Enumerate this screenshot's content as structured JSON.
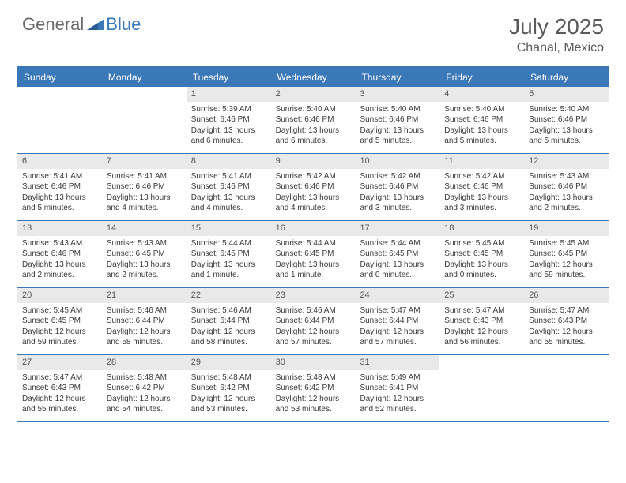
{
  "logo": {
    "general": "General",
    "blue": "Blue"
  },
  "title": "July 2025",
  "location": "Chanal, Mexico",
  "colors": {
    "accent": "#3b78b8",
    "header_bg": "#3b78b8",
    "header_text": "#ffffff",
    "daynum_bg": "#e9e9e9",
    "text": "#3a3a3a",
    "title_text": "#5a5a5a",
    "logo_gray": "#6b6b6b"
  },
  "day_headers": [
    "Sunday",
    "Monday",
    "Tuesday",
    "Wednesday",
    "Thursday",
    "Friday",
    "Saturday"
  ],
  "weeks": [
    [
      {
        "n": "",
        "sr": "",
        "ss": "",
        "dl": ""
      },
      {
        "n": "",
        "sr": "",
        "ss": "",
        "dl": ""
      },
      {
        "n": "1",
        "sr": "Sunrise: 5:39 AM",
        "ss": "Sunset: 6:46 PM",
        "dl": "Daylight: 13 hours and 6 minutes."
      },
      {
        "n": "2",
        "sr": "Sunrise: 5:40 AM",
        "ss": "Sunset: 6:46 PM",
        "dl": "Daylight: 13 hours and 6 minutes."
      },
      {
        "n": "3",
        "sr": "Sunrise: 5:40 AM",
        "ss": "Sunset: 6:46 PM",
        "dl": "Daylight: 13 hours and 5 minutes."
      },
      {
        "n": "4",
        "sr": "Sunrise: 5:40 AM",
        "ss": "Sunset: 6:46 PM",
        "dl": "Daylight: 13 hours and 5 minutes."
      },
      {
        "n": "5",
        "sr": "Sunrise: 5:40 AM",
        "ss": "Sunset: 6:46 PM",
        "dl": "Daylight: 13 hours and 5 minutes."
      }
    ],
    [
      {
        "n": "6",
        "sr": "Sunrise: 5:41 AM",
        "ss": "Sunset: 6:46 PM",
        "dl": "Daylight: 13 hours and 5 minutes."
      },
      {
        "n": "7",
        "sr": "Sunrise: 5:41 AM",
        "ss": "Sunset: 6:46 PM",
        "dl": "Daylight: 13 hours and 4 minutes."
      },
      {
        "n": "8",
        "sr": "Sunrise: 5:41 AM",
        "ss": "Sunset: 6:46 PM",
        "dl": "Daylight: 13 hours and 4 minutes."
      },
      {
        "n": "9",
        "sr": "Sunrise: 5:42 AM",
        "ss": "Sunset: 6:46 PM",
        "dl": "Daylight: 13 hours and 4 minutes."
      },
      {
        "n": "10",
        "sr": "Sunrise: 5:42 AM",
        "ss": "Sunset: 6:46 PM",
        "dl": "Daylight: 13 hours and 3 minutes."
      },
      {
        "n": "11",
        "sr": "Sunrise: 5:42 AM",
        "ss": "Sunset: 6:46 PM",
        "dl": "Daylight: 13 hours and 3 minutes."
      },
      {
        "n": "12",
        "sr": "Sunrise: 5:43 AM",
        "ss": "Sunset: 6:46 PM",
        "dl": "Daylight: 13 hours and 2 minutes."
      }
    ],
    [
      {
        "n": "13",
        "sr": "Sunrise: 5:43 AM",
        "ss": "Sunset: 6:46 PM",
        "dl": "Daylight: 13 hours and 2 minutes."
      },
      {
        "n": "14",
        "sr": "Sunrise: 5:43 AM",
        "ss": "Sunset: 6:45 PM",
        "dl": "Daylight: 13 hours and 2 minutes."
      },
      {
        "n": "15",
        "sr": "Sunrise: 5:44 AM",
        "ss": "Sunset: 6:45 PM",
        "dl": "Daylight: 13 hours and 1 minute."
      },
      {
        "n": "16",
        "sr": "Sunrise: 5:44 AM",
        "ss": "Sunset: 6:45 PM",
        "dl": "Daylight: 13 hours and 1 minute."
      },
      {
        "n": "17",
        "sr": "Sunrise: 5:44 AM",
        "ss": "Sunset: 6:45 PM",
        "dl": "Daylight: 13 hours and 0 minutes."
      },
      {
        "n": "18",
        "sr": "Sunrise: 5:45 AM",
        "ss": "Sunset: 6:45 PM",
        "dl": "Daylight: 13 hours and 0 minutes."
      },
      {
        "n": "19",
        "sr": "Sunrise: 5:45 AM",
        "ss": "Sunset: 6:45 PM",
        "dl": "Daylight: 12 hours and 59 minutes."
      }
    ],
    [
      {
        "n": "20",
        "sr": "Sunrise: 5:45 AM",
        "ss": "Sunset: 6:45 PM",
        "dl": "Daylight: 12 hours and 59 minutes."
      },
      {
        "n": "21",
        "sr": "Sunrise: 5:46 AM",
        "ss": "Sunset: 6:44 PM",
        "dl": "Daylight: 12 hours and 58 minutes."
      },
      {
        "n": "22",
        "sr": "Sunrise: 5:46 AM",
        "ss": "Sunset: 6:44 PM",
        "dl": "Daylight: 12 hours and 58 minutes."
      },
      {
        "n": "23",
        "sr": "Sunrise: 5:46 AM",
        "ss": "Sunset: 6:44 PM",
        "dl": "Daylight: 12 hours and 57 minutes."
      },
      {
        "n": "24",
        "sr": "Sunrise: 5:47 AM",
        "ss": "Sunset: 6:44 PM",
        "dl": "Daylight: 12 hours and 57 minutes."
      },
      {
        "n": "25",
        "sr": "Sunrise: 5:47 AM",
        "ss": "Sunset: 6:43 PM",
        "dl": "Daylight: 12 hours and 56 minutes."
      },
      {
        "n": "26",
        "sr": "Sunrise: 5:47 AM",
        "ss": "Sunset: 6:43 PM",
        "dl": "Daylight: 12 hours and 55 minutes."
      }
    ],
    [
      {
        "n": "27",
        "sr": "Sunrise: 5:47 AM",
        "ss": "Sunset: 6:43 PM",
        "dl": "Daylight: 12 hours and 55 minutes."
      },
      {
        "n": "28",
        "sr": "Sunrise: 5:48 AM",
        "ss": "Sunset: 6:42 PM",
        "dl": "Daylight: 12 hours and 54 minutes."
      },
      {
        "n": "29",
        "sr": "Sunrise: 5:48 AM",
        "ss": "Sunset: 6:42 PM",
        "dl": "Daylight: 12 hours and 53 minutes."
      },
      {
        "n": "30",
        "sr": "Sunrise: 5:48 AM",
        "ss": "Sunset: 6:42 PM",
        "dl": "Daylight: 12 hours and 53 minutes."
      },
      {
        "n": "31",
        "sr": "Sunrise: 5:49 AM",
        "ss": "Sunset: 6:41 PM",
        "dl": "Daylight: 12 hours and 52 minutes."
      },
      {
        "n": "",
        "sr": "",
        "ss": "",
        "dl": ""
      },
      {
        "n": "",
        "sr": "",
        "ss": "",
        "dl": ""
      }
    ]
  ]
}
